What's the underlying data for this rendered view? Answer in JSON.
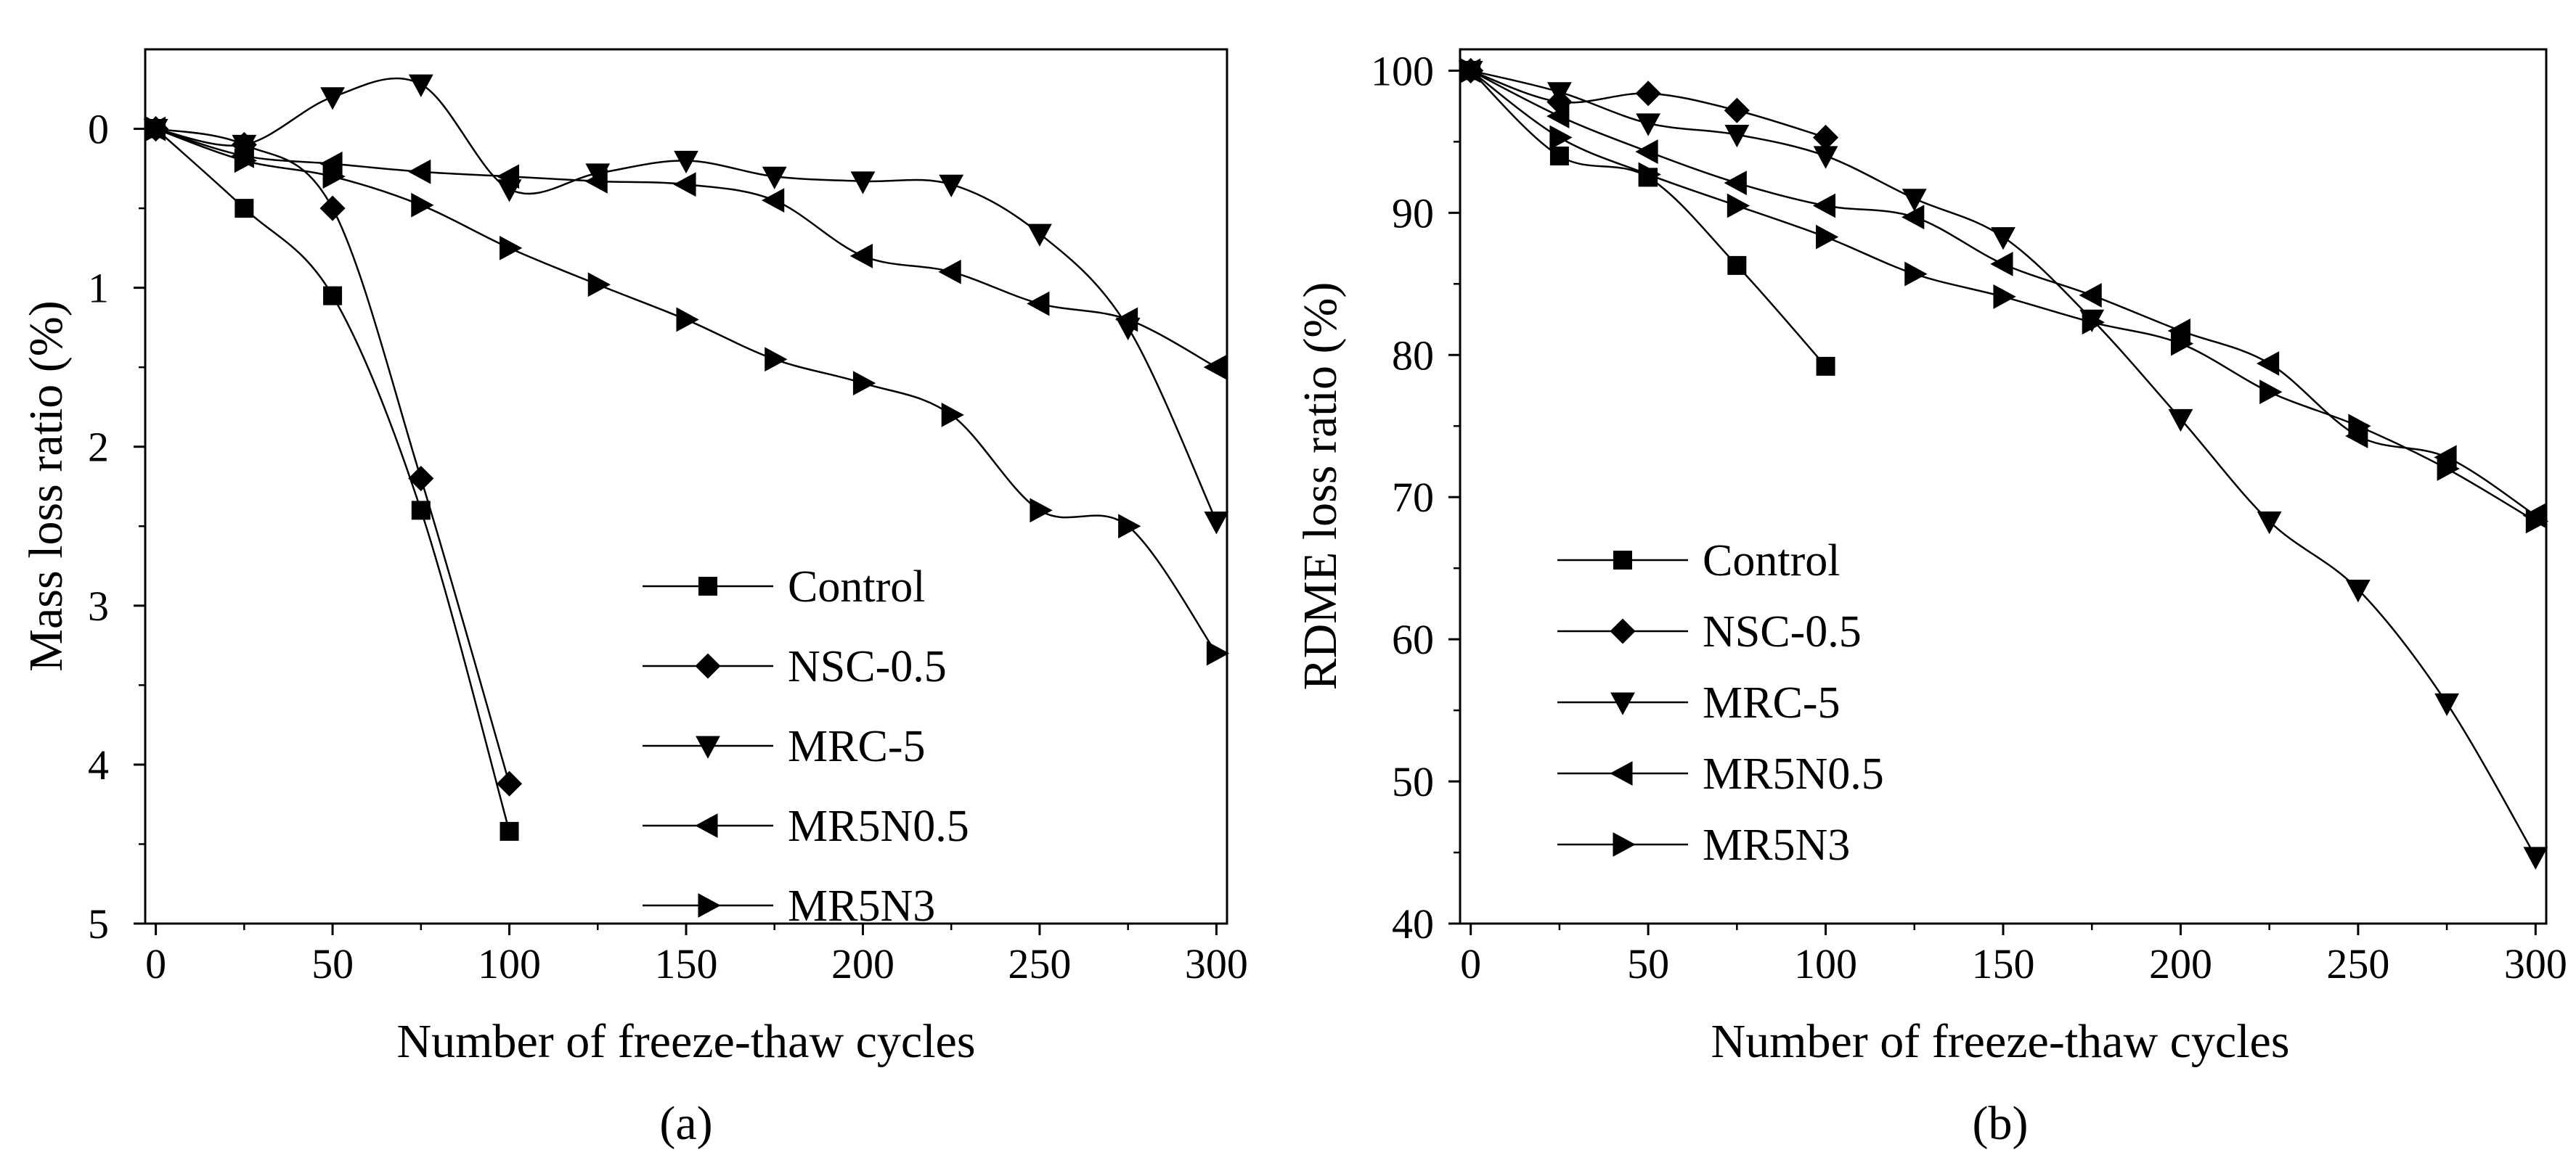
{
  "chart_data": [
    {
      "panel": "a",
      "type": "line",
      "caption": "(a)",
      "xlabel": "Number of freeze-thaw cycles",
      "ylabel": "Mass loss ratio (%)",
      "xlim": [
        -3,
        303
      ],
      "ylim": [
        5,
        -0.5
      ],
      "y_inverted": true,
      "xticks": [
        0,
        50,
        100,
        150,
        200,
        250,
        300
      ],
      "yticks": [
        0,
        1,
        2,
        3,
        4,
        5
      ],
      "legend_position": "center-right",
      "series": [
        {
          "name": "Control",
          "marker": "square",
          "x": [
            0,
            25,
            50,
            75,
            100
          ],
          "y": [
            0,
            0.5,
            1.05,
            2.4,
            4.42
          ]
        },
        {
          "name": "NSC-0.5",
          "marker": "diamond",
          "x": [
            0,
            25,
            50,
            75,
            100
          ],
          "y": [
            0,
            0.1,
            0.5,
            2.2,
            4.12
          ]
        },
        {
          "name": "MRC-5",
          "marker": "triangle-down",
          "x": [
            0,
            25,
            50,
            75,
            100,
            125,
            150,
            175,
            200,
            225,
            250,
            275,
            300
          ],
          "y": [
            0,
            0.1,
            -0.2,
            -0.28,
            0.38,
            0.28,
            0.2,
            0.3,
            0.33,
            0.35,
            0.66,
            1.25,
            2.47
          ]
        },
        {
          "name": "MR5N0.5",
          "marker": "triangle-left",
          "x": [
            0,
            25,
            50,
            75,
            100,
            125,
            150,
            175,
            200,
            225,
            250,
            275,
            300
          ],
          "y": [
            0,
            0.17,
            0.22,
            0.27,
            0.3,
            0.33,
            0.35,
            0.45,
            0.8,
            0.9,
            1.1,
            1.2,
            1.5
          ]
        },
        {
          "name": "MR5N3",
          "marker": "triangle-right",
          "x": [
            0,
            25,
            50,
            75,
            100,
            125,
            150,
            175,
            200,
            225,
            250,
            275,
            300
          ],
          "y": [
            0,
            0.2,
            0.3,
            0.48,
            0.75,
            0.98,
            1.2,
            1.45,
            1.6,
            1.8,
            2.4,
            2.5,
            3.3
          ]
        }
      ]
    },
    {
      "panel": "b",
      "type": "line",
      "caption": "(b)",
      "xlabel": "Number of freeze-thaw cycles",
      "ylabel": "RDME loss ratio (%)",
      "xlim": [
        -3,
        303
      ],
      "ylim": [
        40,
        101.5
      ],
      "y_inverted": false,
      "xticks": [
        0,
        50,
        100,
        150,
        200,
        250,
        300
      ],
      "yticks": [
        40,
        50,
        60,
        70,
        80,
        90,
        100
      ],
      "legend_position": "center-left",
      "series": [
        {
          "name": "Control",
          "marker": "square",
          "x": [
            0,
            25,
            50,
            75,
            100
          ],
          "y": [
            100,
            94,
            92.5,
            86.3,
            79.2
          ]
        },
        {
          "name": "NSC-0.5",
          "marker": "diamond",
          "x": [
            0,
            25,
            50,
            75,
            100
          ],
          "y": [
            100,
            97.8,
            98.4,
            97.2,
            95.3
          ]
        },
        {
          "name": "MRC-5",
          "marker": "triangle-down",
          "x": [
            0,
            25,
            50,
            75,
            100,
            125,
            150,
            175,
            200,
            225,
            250,
            275,
            300
          ],
          "y": [
            100,
            98.5,
            96.3,
            95.5,
            94,
            91,
            88.3,
            82.5,
            75.5,
            68.3,
            63.5,
            55.5,
            44.7
          ]
        },
        {
          "name": "MR5N0.5",
          "marker": "triangle-left",
          "x": [
            0,
            25,
            50,
            75,
            100,
            125,
            150,
            175,
            200,
            225,
            250,
            275,
            300
          ],
          "y": [
            100,
            96.8,
            94.3,
            92.1,
            90.5,
            89.7,
            86.4,
            84.2,
            81.7,
            79.4,
            74.3,
            72.8,
            68.7
          ]
        },
        {
          "name": "MR5N3",
          "marker": "triangle-right",
          "x": [
            0,
            25,
            50,
            75,
            100,
            125,
            150,
            175,
            200,
            225,
            250,
            275,
            300
          ],
          "y": [
            100,
            95.3,
            92.7,
            90.5,
            88.3,
            85.7,
            84.1,
            82.3,
            80.8,
            77.4,
            75,
            72,
            68.3
          ]
        }
      ]
    }
  ]
}
